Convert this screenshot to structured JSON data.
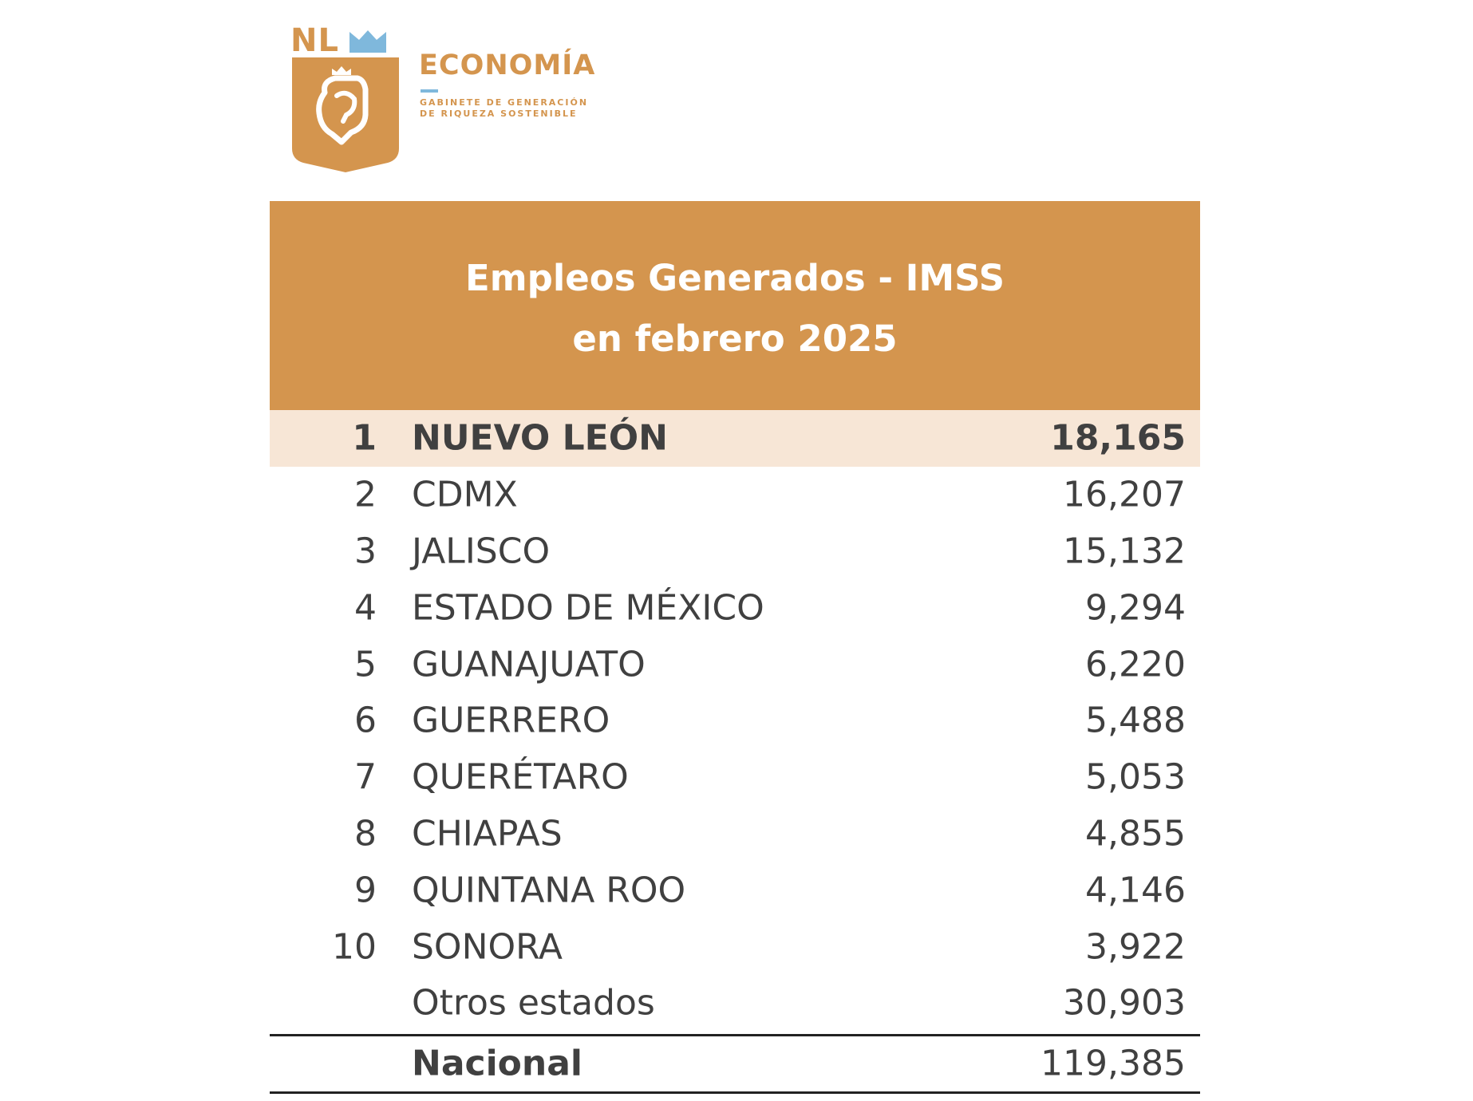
{
  "logo": {
    "nl": "NL",
    "title": "ECONOMÍA",
    "subtitle_line1": "GABINETE DE GENERACIÓN",
    "subtitle_line2": "DE RIQUEZA SOSTENIBLE"
  },
  "table": {
    "title_line1": "Empleos Generados - IMSS",
    "title_line2": "en febrero 2025",
    "rows": [
      {
        "rank": "1",
        "state": "NUEVO LEÓN",
        "value": "18,165"
      },
      {
        "rank": "2",
        "state": "CDMX",
        "value": "16,207"
      },
      {
        "rank": "3",
        "state": "JALISCO",
        "value": "15,132"
      },
      {
        "rank": "4",
        "state": "ESTADO DE MÉXICO",
        "value": "9,294"
      },
      {
        "rank": "5",
        "state": "GUANAJUATO",
        "value": "6,220"
      },
      {
        "rank": "6",
        "state": "GUERRERO",
        "value": "5,488"
      },
      {
        "rank": "7",
        "state": "QUERÉTARO",
        "value": "5,053"
      },
      {
        "rank": "8",
        "state": "CHIAPAS",
        "value": "4,855"
      },
      {
        "rank": "9",
        "state": "QUINTANA ROO",
        "value": "4,146"
      },
      {
        "rank": "10",
        "state": "SONORA",
        "value": "3,922"
      }
    ],
    "others": {
      "state": "Otros estados",
      "value": "30,903"
    },
    "total": {
      "state": "Nacional",
      "value": "119,385"
    }
  },
  "colors": {
    "brand_orange": "#d4954e",
    "highlight_row": "#f7e6d6",
    "accent_blue": "#7fb8dc"
  }
}
